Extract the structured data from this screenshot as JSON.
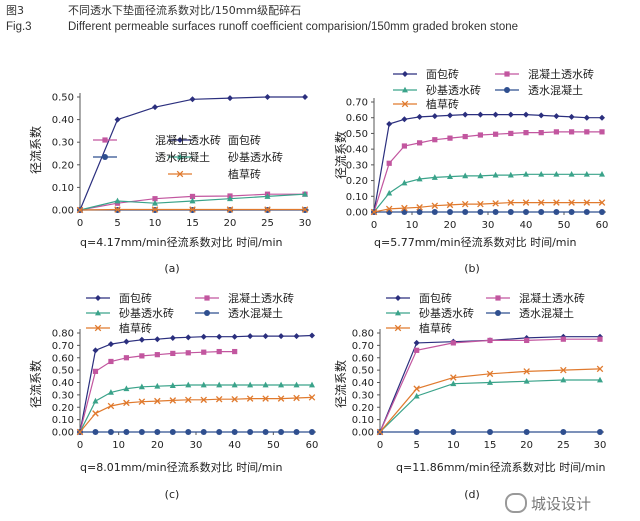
{
  "figure": {
    "label_cn": "图3",
    "title_cn": "不同透水下垫面径流系数对比/150mm级配碎石",
    "label_en": "Fig.3",
    "title_en": "Different permeable surfaces runoff coefficient comparision/150mm graded broken stone",
    "watermark": "城设设计"
  },
  "chart_data": [
    {
      "type": "line",
      "panel": "(a)",
      "xlabel": "q=4.17mm/min径流系数对比    时间/min",
      "ylabel": "径流系数",
      "xlim": [
        0,
        30
      ],
      "ylim": [
        0,
        0.5
      ],
      "xticks": [
        0,
        5,
        10,
        15,
        20,
        25,
        30
      ],
      "yticks": [
        0.0,
        0.1,
        0.2,
        0.3,
        0.4,
        0.5
      ],
      "legend_position": "middle-right",
      "series": [
        {
          "name": "面包砖",
          "color": "#2b2f7e",
          "marker": "diamond",
          "x": [
            0,
            5,
            10,
            15,
            20,
            25,
            30
          ],
          "y": [
            0,
            0.4,
            0.455,
            0.49,
            0.495,
            0.5,
            0.5
          ]
        },
        {
          "name": "混凝土透水砖",
          "color": "#c2569f",
          "marker": "square",
          "x": [
            0,
            5,
            10,
            15,
            20,
            25,
            30
          ],
          "y": [
            0,
            0.03,
            0.05,
            0.06,
            0.062,
            0.07,
            0.07
          ]
        },
        {
          "name": "砂基透水砖",
          "color": "#3aa38a",
          "marker": "triangle",
          "x": [
            0,
            5,
            10,
            15,
            20,
            25,
            30
          ],
          "y": [
            0,
            0.04,
            0.03,
            0.04,
            0.05,
            0.06,
            0.07
          ]
        },
        {
          "name": "透水混凝土",
          "color": "#2f4f8f",
          "marker": "circle",
          "x": [
            0,
            5,
            10,
            15,
            20,
            25,
            30
          ],
          "y": [
            0,
            0,
            0,
            0,
            0,
            0,
            0
          ]
        },
        {
          "name": "植草砖",
          "color": "#e07a2e",
          "marker": "x",
          "x": [
            0,
            5,
            10,
            15,
            20,
            25,
            30
          ],
          "y": [
            0,
            0.002,
            0.002,
            0.002,
            0.002,
            0.002,
            0.002
          ]
        }
      ]
    },
    {
      "type": "line",
      "panel": "(b)",
      "xlabel": "q=5.77mm/min径流系数对比    时间/min",
      "ylabel": "径流系数",
      "xlim": [
        0,
        60
      ],
      "ylim": [
        0,
        0.7
      ],
      "xticks": [
        0,
        10,
        20,
        30,
        40,
        50,
        60
      ],
      "yticks": [
        0.0,
        0.1,
        0.2,
        0.3,
        0.4,
        0.5,
        0.6,
        0.7
      ],
      "legend_position": "top",
      "series": [
        {
          "name": "面包砖",
          "color": "#2b2f7e",
          "marker": "diamond",
          "x": [
            0,
            4,
            8,
            12,
            16,
            20,
            24,
            28,
            32,
            36,
            40,
            44,
            48,
            52,
            56,
            60
          ],
          "y": [
            0,
            0.56,
            0.59,
            0.605,
            0.61,
            0.615,
            0.62,
            0.62,
            0.62,
            0.62,
            0.62,
            0.615,
            0.61,
            0.605,
            0.6,
            0.6
          ]
        },
        {
          "name": "混凝土透水砖",
          "color": "#c2569f",
          "marker": "square",
          "x": [
            0,
            4,
            8,
            12,
            16,
            20,
            24,
            28,
            32,
            36,
            40,
            44,
            48,
            52,
            56,
            60
          ],
          "y": [
            0,
            0.31,
            0.42,
            0.44,
            0.46,
            0.47,
            0.48,
            0.49,
            0.495,
            0.5,
            0.505,
            0.505,
            0.51,
            0.51,
            0.51,
            0.51
          ]
        },
        {
          "name": "砂基透水砖",
          "color": "#3aa38a",
          "marker": "triangle",
          "x": [
            0,
            4,
            8,
            12,
            16,
            20,
            24,
            28,
            32,
            36,
            40,
            44,
            48,
            52,
            56,
            60
          ],
          "y": [
            0,
            0.12,
            0.185,
            0.21,
            0.22,
            0.225,
            0.23,
            0.23,
            0.235,
            0.235,
            0.24,
            0.24,
            0.24,
            0.24,
            0.24,
            0.24
          ]
        },
        {
          "name": "透水混凝土",
          "color": "#2f4f8f",
          "marker": "circle",
          "x": [
            0,
            4,
            8,
            12,
            16,
            20,
            24,
            28,
            32,
            36,
            40,
            44,
            48,
            52,
            56,
            60
          ],
          "y": [
            0,
            0,
            0,
            0,
            0,
            0,
            0,
            0,
            0,
            0,
            0,
            0,
            0,
            0,
            0,
            0
          ]
        },
        {
          "name": "植草砖",
          "color": "#e07a2e",
          "marker": "x",
          "x": [
            0,
            4,
            8,
            12,
            16,
            20,
            24,
            28,
            32,
            36,
            40,
            44,
            48,
            52,
            56,
            60
          ],
          "y": [
            0,
            0.02,
            0.025,
            0.03,
            0.04,
            0.045,
            0.05,
            0.05,
            0.055,
            0.06,
            0.06,
            0.06,
            0.06,
            0.06,
            0.06,
            0.06
          ]
        }
      ]
    },
    {
      "type": "line",
      "panel": "(c)",
      "xlabel": "q=8.01mm/min径流系数对比    时间/min",
      "ylabel": "径流系数",
      "xlim": [
        0,
        60
      ],
      "ylim": [
        0,
        0.8
      ],
      "xticks": [
        0,
        10,
        20,
        30,
        40,
        50,
        60
      ],
      "yticks": [
        0.0,
        0.1,
        0.2,
        0.3,
        0.4,
        0.5,
        0.6,
        0.7,
        0.8
      ],
      "legend_position": "top",
      "series": [
        {
          "name": "面包砖",
          "color": "#2b2f7e",
          "marker": "diamond",
          "x": [
            0,
            4,
            8,
            12,
            16,
            20,
            24,
            28,
            32,
            36,
            40,
            44,
            48,
            52,
            56,
            60
          ],
          "y": [
            0,
            0.66,
            0.71,
            0.73,
            0.745,
            0.75,
            0.76,
            0.765,
            0.77,
            0.77,
            0.77,
            0.775,
            0.775,
            0.775,
            0.775,
            0.78
          ]
        },
        {
          "name": "混凝土透水砖",
          "color": "#c2569f",
          "marker": "square",
          "x": [
            0,
            4,
            8,
            12,
            16,
            20,
            24,
            28,
            32,
            36,
            40
          ],
          "y": [
            0,
            0.49,
            0.57,
            0.6,
            0.615,
            0.625,
            0.635,
            0.64,
            0.645,
            0.65,
            0.65
          ]
        },
        {
          "name": "砂基透水砖",
          "color": "#3aa38a",
          "marker": "triangle",
          "x": [
            0,
            4,
            8,
            12,
            16,
            20,
            24,
            28,
            32,
            36,
            40,
            44,
            48,
            52,
            56,
            60
          ],
          "y": [
            0,
            0.25,
            0.32,
            0.35,
            0.365,
            0.37,
            0.375,
            0.38,
            0.38,
            0.38,
            0.38,
            0.38,
            0.38,
            0.38,
            0.38,
            0.38
          ]
        },
        {
          "name": "透水混凝土",
          "color": "#2f4f8f",
          "marker": "circle",
          "x": [
            0,
            4,
            8,
            12,
            16,
            20,
            24,
            28,
            32,
            36,
            40,
            44,
            48,
            52,
            56,
            60
          ],
          "y": [
            0,
            0,
            0,
            0,
            0,
            0,
            0,
            0,
            0,
            0,
            0,
            0,
            0,
            0,
            0,
            0
          ]
        },
        {
          "name": "植草砖",
          "color": "#e07a2e",
          "marker": "x",
          "x": [
            0,
            4,
            8,
            12,
            16,
            20,
            24,
            28,
            32,
            36,
            40,
            44,
            48,
            52,
            56,
            60
          ],
          "y": [
            0,
            0.15,
            0.21,
            0.235,
            0.245,
            0.25,
            0.255,
            0.26,
            0.26,
            0.265,
            0.265,
            0.27,
            0.27,
            0.27,
            0.275,
            0.28
          ]
        }
      ]
    },
    {
      "type": "line",
      "panel": "(d)",
      "xlabel": "q=11.86mm/min径流系数对比    时间/min",
      "ylabel": "径流系数",
      "xlim": [
        0,
        30
      ],
      "ylim": [
        0,
        0.8
      ],
      "xticks": [
        0,
        5,
        10,
        15,
        20,
        25,
        30
      ],
      "yticks": [
        0.0,
        0.1,
        0.2,
        0.3,
        0.4,
        0.5,
        0.6,
        0.7,
        0.8
      ],
      "legend_position": "top",
      "series": [
        {
          "name": "面包砖",
          "color": "#2b2f7e",
          "marker": "diamond",
          "x": [
            0,
            5,
            10,
            15,
            20,
            25,
            30
          ],
          "y": [
            0,
            0.72,
            0.73,
            0.74,
            0.76,
            0.77,
            0.77
          ]
        },
        {
          "name": "混凝土透水砖",
          "color": "#c2569f",
          "marker": "square",
          "x": [
            0,
            5,
            10,
            15,
            20,
            25,
            30
          ],
          "y": [
            0,
            0.66,
            0.72,
            0.74,
            0.74,
            0.75,
            0.75
          ]
        },
        {
          "name": "砂基透水砖",
          "color": "#3aa38a",
          "marker": "triangle",
          "x": [
            0,
            5,
            10,
            15,
            20,
            25,
            30
          ],
          "y": [
            0,
            0.29,
            0.39,
            0.4,
            0.41,
            0.42,
            0.42
          ]
        },
        {
          "name": "透水混凝土",
          "color": "#2f4f8f",
          "marker": "circle",
          "x": [
            0,
            5,
            10,
            15,
            20,
            25,
            30
          ],
          "y": [
            0,
            0,
            0,
            0,
            0,
            0,
            0
          ]
        },
        {
          "name": "植草砖",
          "color": "#e07a2e",
          "marker": "x",
          "x": [
            0,
            5,
            10,
            15,
            20,
            25,
            30
          ],
          "y": [
            0,
            0.35,
            0.44,
            0.47,
            0.49,
            0.5,
            0.51
          ]
        }
      ]
    }
  ]
}
